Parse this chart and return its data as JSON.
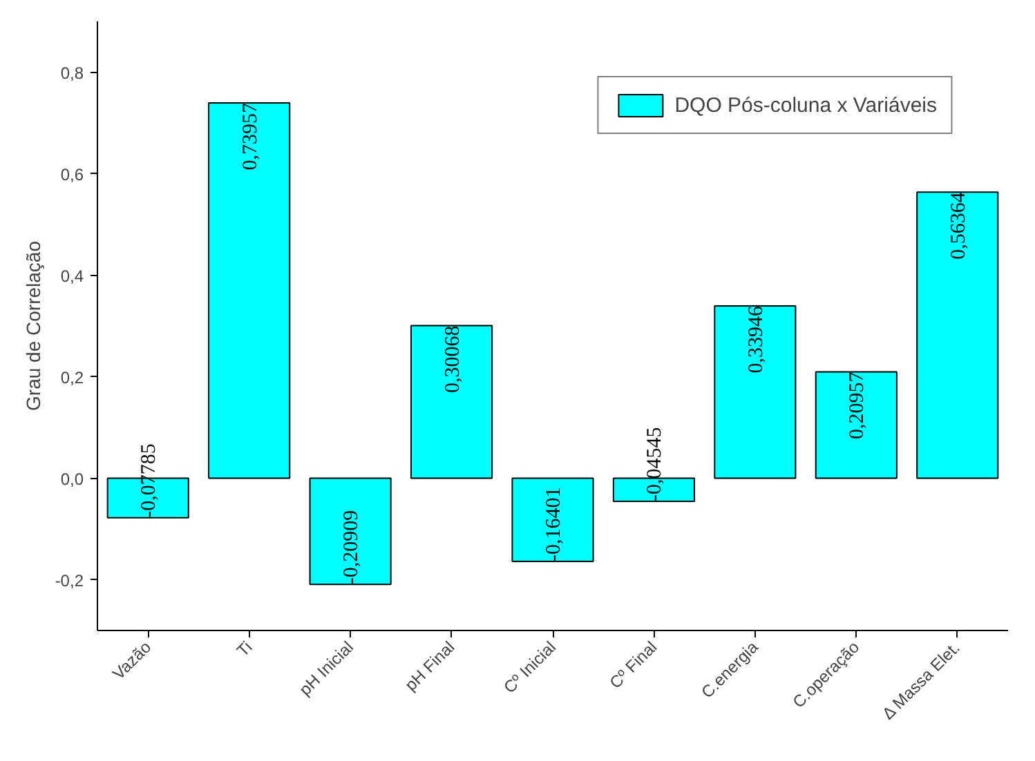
{
  "chart_data": {
    "type": "bar",
    "ylabel": "Grau de Correlação",
    "categories": [
      "Vazão",
      "Ti",
      "pH Inicial",
      "pH Final",
      "Cº Inicial",
      "Cº Final",
      "C.energia",
      "C.operação",
      "Δ Massa Elet."
    ],
    "series": [
      {
        "name": "DQO Pós-coluna x Variáveis",
        "color": "#00ffff",
        "values": [
          -0.07785,
          0.73957,
          -0.20909,
          0.30068,
          -0.16401,
          -0.04545,
          0.33946,
          0.20957,
          0.56364
        ],
        "value_labels": [
          "-0,07785",
          "0,73957",
          "-0,20909",
          "0,30068",
          "-0,16401",
          "-0,04545",
          "0,33946",
          "0,20957",
          "0,56364"
        ]
      }
    ],
    "ylim": [
      -0.3,
      0.9
    ],
    "yticks": [
      {
        "value": -0.2,
        "label": "-0,2"
      },
      {
        "value": 0.0,
        "label": "0,0"
      },
      {
        "value": 0.2,
        "label": "0,2"
      },
      {
        "value": 0.4,
        "label": "0,4"
      },
      {
        "value": 0.6,
        "label": "0,6"
      },
      {
        "value": 0.8,
        "label": "0,8"
      }
    ],
    "grid": false,
    "legend": "top right"
  }
}
